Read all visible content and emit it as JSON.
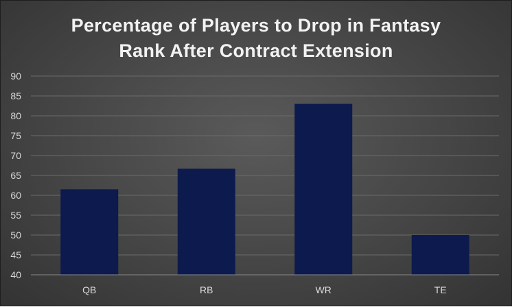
{
  "chart_data": {
    "type": "bar",
    "title_lines": [
      "Percentage of Players to Drop in Fantasy",
      "Rank After Contract Extension"
    ],
    "categories": [
      "QB",
      "RB",
      "WR",
      "TE"
    ],
    "values": [
      61.5,
      66.7,
      83.0,
      50.0
    ],
    "xlabel": "",
    "ylabel": "",
    "ylim": [
      40,
      90
    ],
    "yticks": [
      40,
      45,
      50,
      55,
      60,
      65,
      70,
      75,
      80,
      85,
      90
    ],
    "grid": true,
    "legend": "none",
    "colors": {
      "bar": "#0c1a4e",
      "grid": "#6b6b6b",
      "axis_line": "#8a8a8a",
      "text": "#d9d9d9",
      "title": "#f2f2f2"
    }
  }
}
